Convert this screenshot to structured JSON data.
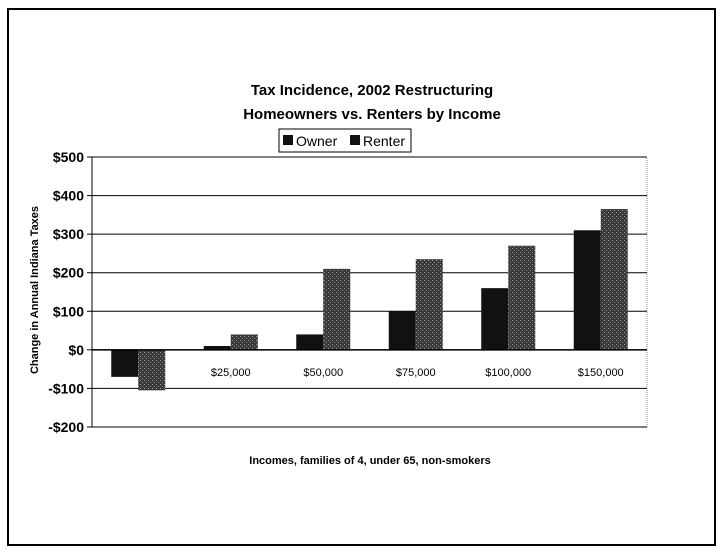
{
  "chart_data": {
    "type": "bar",
    "title": [
      "Tax Incidence, 2002 Restructuring",
      "Homeowners vs. Renters by Income"
    ],
    "categories": [
      "",
      "$25,000",
      "$50,000",
      "$75,000",
      "$100,000",
      "$150,000"
    ],
    "series": [
      {
        "name": "Owner",
        "values": [
          -70,
          10,
          40,
          100,
          160,
          310
        ],
        "color": "#1a1a1a"
      },
      {
        "name": "Renter",
        "values": [
          -105,
          40,
          210,
          235,
          270,
          365
        ],
        "color": "#444444"
      }
    ],
    "ylabel": "Change in Annual Indiana Taxes",
    "xlabel": "Incomes, families of 4, under 65, non-smokers",
    "ylim": [
      -200,
      500
    ],
    "yticks": [
      500,
      400,
      300,
      200,
      100,
      0,
      -100,
      -200
    ],
    "ytick_labels": [
      "$500",
      "$400",
      "$300",
      "$200",
      "$100",
      "$0",
      "-$100",
      "-$200"
    ],
    "grid": true,
    "legend_position": "top-center"
  }
}
